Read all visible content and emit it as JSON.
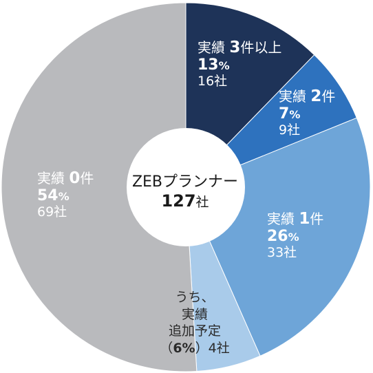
{
  "chart_data": {
    "type": "pie",
    "center_label": "ZEBプランナー",
    "center_count": "127",
    "center_unit": "社",
    "slices": [
      {
        "name": "実績3件以上",
        "label_prefix": "実績",
        "label_num": "3",
        "label_suffix": "件以上",
        "percent": 13,
        "percent_text": "13",
        "companies": 16,
        "count_text": "16社",
        "color": "#1e3358"
      },
      {
        "name": "実績2件",
        "label_prefix": "実績",
        "label_num": "2",
        "label_suffix": "件",
        "percent": 7,
        "percent_text": "7",
        "companies": 9,
        "count_text": "9社",
        "color": "#2e72be"
      },
      {
        "name": "実績1件",
        "label_prefix": "実績",
        "label_num": "1",
        "label_suffix": "件",
        "percent": 26,
        "percent_text": "26",
        "companies": 33,
        "count_text": "33社",
        "color": "#6ea5d8"
      },
      {
        "name": "うち、実績追加予定",
        "lines": [
          "うち、",
          "実績",
          "追加予定"
        ],
        "percent": 6,
        "percent_text": "6",
        "companies": 4,
        "count_text": "4社",
        "color": "#a9cbea"
      },
      {
        "name": "実績0件",
        "label_prefix": "実績",
        "label_num": "0",
        "label_suffix": "件",
        "percent": 54,
        "percent_text": "54",
        "companies": 69,
        "count_text": "69社",
        "color": "#b9babd"
      }
    ],
    "percent_symbol": "%",
    "paren_open": "（",
    "paren_close": "）"
  }
}
